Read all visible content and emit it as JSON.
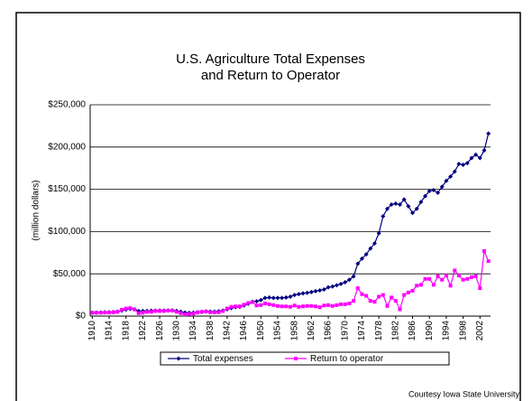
{
  "chart_data": {
    "type": "line",
    "title": [
      "U.S. Agriculture Total Expenses",
      "and Return to Operator"
    ],
    "y_label": "(million dollars)",
    "source": "Courtesy Iowa State University",
    "x": [
      1910,
      1911,
      1912,
      1913,
      1914,
      1915,
      1916,
      1917,
      1918,
      1919,
      1920,
      1921,
      1922,
      1923,
      1924,
      1925,
      1926,
      1927,
      1928,
      1929,
      1930,
      1931,
      1932,
      1933,
      1934,
      1935,
      1936,
      1937,
      1938,
      1939,
      1940,
      1941,
      1942,
      1943,
      1944,
      1945,
      1946,
      1947,
      1948,
      1949,
      1950,
      1951,
      1952,
      1953,
      1954,
      1955,
      1956,
      1957,
      1958,
      1959,
      1960,
      1961,
      1962,
      1963,
      1964,
      1965,
      1966,
      1967,
      1968,
      1969,
      1970,
      1971,
      1972,
      1973,
      1974,
      1975,
      1976,
      1977,
      1978,
      1979,
      1980,
      1981,
      1982,
      1983,
      1984,
      1985,
      1986,
      1987,
      1988,
      1989,
      1990,
      1991,
      1992,
      1993,
      1994,
      1995,
      1996,
      1997,
      1998,
      1999,
      2000,
      2001,
      2002,
      2003,
      2004
    ],
    "xlim": [
      1909.5,
      2004.5
    ],
    "xticks": [
      1910,
      1914,
      1918,
      1922,
      1926,
      1930,
      1934,
      1938,
      1942,
      1946,
      1950,
      1954,
      1958,
      1962,
      1966,
      1970,
      1974,
      1978,
      1982,
      1986,
      1990,
      1994,
      1998,
      2002
    ],
    "ylim": [
      0,
      250000
    ],
    "yticks": [
      {
        "value": 0,
        "label": "$0"
      },
      {
        "value": 50000,
        "label": "$50,000"
      },
      {
        "value": 100000,
        "label": "$100,000"
      },
      {
        "value": 150000,
        "label": "$150,000"
      },
      {
        "value": 200000,
        "label": "$200,000"
      },
      {
        "value": 250000,
        "label": "$250,000"
      }
    ],
    "grid": true,
    "legend": "bottom",
    "series": [
      {
        "name": "Total expenses",
        "color": "#000080",
        "marker": "diamond",
        "values": [
          4000,
          4200,
          4300,
          4500,
          4600,
          4800,
          5200,
          6500,
          7800,
          8500,
          8000,
          6000,
          6000,
          6200,
          6400,
          6400,
          6500,
          6500,
          6700,
          6700,
          6200,
          5200,
          4200,
          3900,
          4200,
          4600,
          5000,
          5500,
          5300,
          5400,
          5700,
          6500,
          8000,
          9500,
          10500,
          11000,
          12500,
          14500,
          17000,
          17500,
          19000,
          21500,
          22000,
          21500,
          21500,
          21500,
          22000,
          23000,
          25000,
          26000,
          27000,
          27500,
          28500,
          29500,
          30500,
          31500,
          34000,
          35000,
          36500,
          38000,
          40000,
          43000,
          47000,
          62000,
          68000,
          73000,
          80000,
          86000,
          98000,
          118000,
          127000,
          132000,
          133000,
          132000,
          138000,
          130000,
          122000,
          127000,
          135000,
          142000,
          148000,
          149000,
          146000,
          153000,
          160000,
          165000,
          171000,
          180000,
          179000,
          181000,
          187000,
          191000,
          187000,
          196000,
          216000
        ]
      },
      {
        "name": "Return to operator",
        "color": "#ff00ff",
        "marker": "square",
        "values": [
          4000,
          4000,
          4000,
          4200,
          4200,
          4500,
          5000,
          7500,
          9000,
          9500,
          8000,
          3500,
          4000,
          5000,
          5000,
          6000,
          6000,
          6000,
          6500,
          6500,
          5000,
          3500,
          2000,
          2500,
          3000,
          4500,
          5000,
          5500,
          4500,
          4500,
          4500,
          6000,
          9000,
          11000,
          11500,
          11500,
          13500,
          15500,
          16500,
          12500,
          13000,
          15000,
          14000,
          13000,
          12000,
          11500,
          11500,
          11000,
          12500,
          11000,
          11500,
          12000,
          12000,
          11500,
          10500,
          12500,
          13000,
          12000,
          13000,
          14000,
          14000,
          15000,
          18000,
          33000,
          26000,
          24000,
          18000,
          17000,
          23000,
          25000,
          12000,
          22000,
          18000,
          8000,
          25000,
          28000,
          30000,
          36000,
          37000,
          44000,
          44000,
          37000,
          47000,
          43000,
          48000,
          36000,
          54000,
          48000,
          43000,
          44000,
          46000,
          47000,
          33000,
          77000,
          65000
        ]
      }
    ]
  }
}
